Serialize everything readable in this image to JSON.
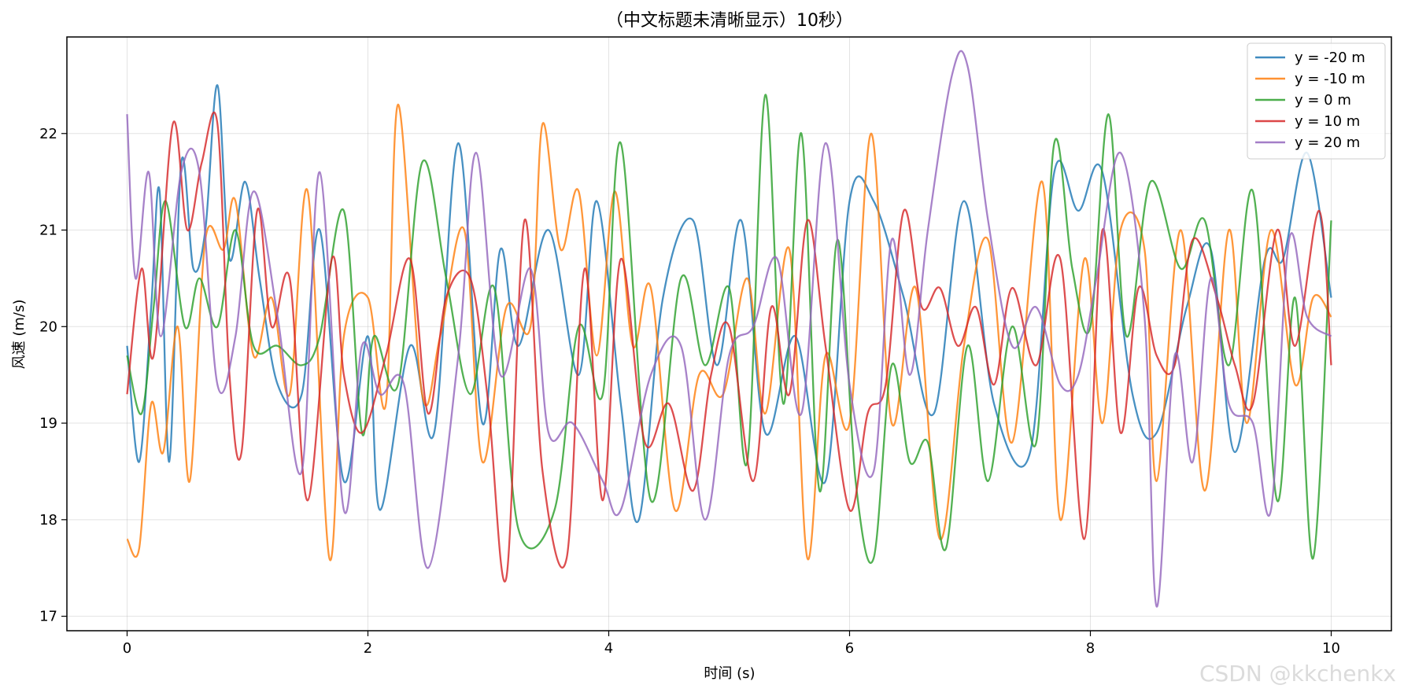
{
  "chart_data": {
    "type": "line",
    "title": "（中文标题未清晰显示）10秒）",
    "xlabel": "时间 (s)",
    "ylabel": "风速 (m/s)",
    "xlim": [
      -0.5,
      10.5
    ],
    "ylim": [
      16.85,
      23.0
    ],
    "xticks": [
      0,
      2,
      4,
      6,
      8,
      10
    ],
    "yticks": [
      17,
      18,
      19,
      20,
      21,
      22
    ],
    "grid": true,
    "legend_position": "top-right",
    "series": [
      {
        "name": "y = -20 m",
        "color": "#1f77b4",
        "x": [
          0,
          0.1,
          0.2,
          0.27,
          0.35,
          0.45,
          0.55,
          0.65,
          0.75,
          0.85,
          0.98,
          1.1,
          1.25,
          1.45,
          1.6,
          1.8,
          2.0,
          2.1,
          2.35,
          2.55,
          2.75,
          2.95,
          3.1,
          3.25,
          3.5,
          3.75,
          3.9,
          4.1,
          4.25,
          4.45,
          4.7,
          4.9,
          5.1,
          5.3,
          5.55,
          5.8,
          6.0,
          6.2,
          6.45,
          6.7,
          6.95,
          7.2,
          7.5,
          7.7,
          7.9,
          8.1,
          8.35,
          8.55,
          8.8,
          9.0,
          9.2,
          9.45,
          9.6,
          9.8,
          10.0
        ],
        "y": [
          19.8,
          18.6,
          20.2,
          21.4,
          18.6,
          21.7,
          20.6,
          21.0,
          22.5,
          20.7,
          21.5,
          20.5,
          19.4,
          19.3,
          21.0,
          18.4,
          19.9,
          18.1,
          19.8,
          18.9,
          21.9,
          19.0,
          20.8,
          19.8,
          21.0,
          19.5,
          21.3,
          19.2,
          18.0,
          20.3,
          21.1,
          19.6,
          21.1,
          18.9,
          19.9,
          18.4,
          21.3,
          21.3,
          20.3,
          19.1,
          21.3,
          19.2,
          18.7,
          21.6,
          21.2,
          21.6,
          19.3,
          18.9,
          20.2,
          20.8,
          18.7,
          20.7,
          20.7,
          21.8,
          20.3
        ]
      },
      {
        "name": "y = -10 m",
        "color": "#ff7f0e",
        "x": [
          0,
          0.1,
          0.2,
          0.3,
          0.42,
          0.52,
          0.65,
          0.8,
          0.9,
          1.05,
          1.2,
          1.35,
          1.5,
          1.68,
          1.8,
          2.0,
          2.15,
          2.25,
          2.45,
          2.6,
          2.8,
          2.95,
          3.15,
          3.35,
          3.45,
          3.6,
          3.75,
          3.9,
          4.05,
          4.2,
          4.35,
          4.55,
          4.75,
          4.95,
          5.15,
          5.3,
          5.5,
          5.65,
          5.8,
          6.0,
          6.18,
          6.35,
          6.55,
          6.75,
          6.95,
          7.15,
          7.35,
          7.6,
          7.75,
          7.95,
          8.1,
          8.25,
          8.45,
          8.55,
          8.75,
          8.95,
          9.15,
          9.3,
          9.5,
          9.7,
          9.85,
          10.0
        ],
        "y": [
          17.8,
          17.7,
          19.2,
          18.7,
          20.0,
          18.4,
          20.9,
          20.8,
          21.3,
          19.7,
          20.3,
          19.3,
          21.4,
          17.6,
          19.9,
          20.3,
          19.2,
          22.3,
          19.3,
          19.9,
          21.0,
          18.6,
          20.2,
          20.0,
          22.1,
          20.8,
          21.4,
          19.7,
          21.4,
          19.8,
          20.4,
          18.1,
          19.5,
          19.3,
          20.5,
          19.1,
          20.8,
          17.6,
          19.7,
          19.0,
          22.0,
          19.0,
          20.4,
          17.8,
          19.8,
          20.9,
          18.8,
          21.5,
          18.0,
          20.7,
          19.0,
          21.0,
          20.8,
          18.4,
          21.0,
          18.3,
          21.0,
          19.0,
          21.0,
          19.4,
          20.3,
          20.1
        ]
      },
      {
        "name": "y = 0 m",
        "color": "#2ca02c",
        "x": [
          0,
          0.12,
          0.22,
          0.32,
          0.48,
          0.6,
          0.75,
          0.9,
          1.05,
          1.25,
          1.45,
          1.6,
          1.8,
          1.95,
          2.05,
          2.25,
          2.45,
          2.65,
          2.85,
          3.05,
          3.25,
          3.55,
          3.75,
          3.95,
          4.1,
          4.35,
          4.6,
          4.8,
          5.0,
          5.15,
          5.3,
          5.45,
          5.6,
          5.75,
          5.9,
          6.05,
          6.2,
          6.35,
          6.5,
          6.65,
          6.8,
          6.98,
          7.15,
          7.35,
          7.55,
          7.7,
          7.85,
          8.0,
          8.15,
          8.3,
          8.5,
          8.75,
          8.95,
          9.15,
          9.35,
          9.55,
          9.7,
          9.85,
          10.0
        ],
        "y": [
          19.7,
          19.1,
          20.2,
          21.3,
          20.0,
          20.5,
          20.0,
          21.0,
          19.8,
          19.8,
          19.6,
          19.9,
          21.2,
          18.9,
          19.9,
          19.4,
          21.7,
          20.5,
          19.3,
          20.4,
          17.9,
          18.1,
          20.0,
          19.3,
          21.9,
          18.2,
          20.5,
          19.6,
          20.4,
          18.6,
          22.4,
          19.2,
          22.0,
          18.3,
          20.9,
          18.4,
          17.6,
          19.6,
          18.6,
          18.8,
          17.7,
          19.8,
          18.4,
          20.0,
          18.8,
          21.9,
          20.6,
          20.0,
          22.2,
          19.9,
          21.5,
          20.6,
          21.1,
          19.6,
          21.4,
          18.2,
          20.3,
          17.6,
          21.1
        ]
      },
      {
        "name": "y = 10 m",
        "color": "#d62728",
        "x": [
          0,
          0.12,
          0.22,
          0.38,
          0.5,
          0.62,
          0.75,
          0.85,
          0.95,
          1.08,
          1.2,
          1.35,
          1.5,
          1.7,
          1.8,
          1.95,
          2.15,
          2.35,
          2.5,
          2.65,
          2.85,
          3.0,
          3.15,
          3.3,
          3.45,
          3.65,
          3.8,
          3.95,
          4.1,
          4.3,
          4.5,
          4.7,
          4.85,
          5.0,
          5.2,
          5.35,
          5.5,
          5.65,
          5.8,
          6.0,
          6.15,
          6.3,
          6.45,
          6.6,
          6.75,
          6.9,
          7.05,
          7.2,
          7.35,
          7.55,
          7.75,
          7.95,
          8.1,
          8.25,
          8.4,
          8.55,
          8.7,
          8.85,
          9.05,
          9.2,
          9.35,
          9.55,
          9.7,
          9.9,
          10.0
        ],
        "y": [
          19.3,
          20.6,
          19.7,
          22.1,
          21.0,
          21.7,
          22.1,
          19.5,
          18.7,
          21.2,
          20.0,
          20.5,
          18.2,
          20.7,
          19.5,
          18.9,
          19.7,
          20.7,
          19.1,
          20.3,
          20.5,
          19.2,
          17.4,
          21.1,
          18.5,
          17.6,
          20.6,
          18.2,
          20.7,
          18.8,
          19.2,
          18.3,
          19.5,
          20.0,
          18.4,
          20.2,
          19.3,
          21.1,
          19.8,
          18.1,
          19.1,
          19.4,
          21.2,
          20.2,
          20.4,
          19.8,
          20.2,
          19.4,
          20.4,
          19.6,
          20.7,
          17.8,
          21.0,
          18.9,
          20.4,
          19.7,
          19.6,
          20.9,
          20.3,
          19.6,
          19.2,
          21.0,
          19.8,
          21.2,
          19.6
        ]
      },
      {
        "name": "y = 20 m",
        "color": "#9467bd",
        "x": [
          0,
          0.07,
          0.18,
          0.28,
          0.45,
          0.6,
          0.75,
          0.9,
          1.05,
          1.25,
          1.45,
          1.6,
          1.8,
          1.95,
          2.1,
          2.3,
          2.5,
          2.75,
          2.9,
          3.1,
          3.35,
          3.5,
          3.7,
          3.95,
          4.1,
          4.35,
          4.6,
          4.8,
          5.0,
          5.2,
          5.4,
          5.6,
          5.8,
          6.0,
          6.2,
          6.35,
          6.5,
          6.65,
          6.85,
          6.98,
          7.15,
          7.35,
          7.55,
          7.75,
          7.9,
          8.05,
          8.25,
          8.45,
          8.55,
          8.7,
          8.85,
          9.0,
          9.15,
          9.35,
          9.5,
          9.65,
          9.8,
          10.0
        ],
        "y": [
          22.2,
          20.5,
          21.6,
          19.9,
          21.6,
          21.6,
          19.4,
          19.9,
          21.4,
          20.1,
          18.5,
          21.6,
          18.1,
          19.8,
          19.3,
          19.4,
          17.5,
          19.7,
          21.8,
          19.5,
          20.6,
          18.9,
          19.0,
          18.4,
          18.1,
          19.5,
          19.8,
          18.0,
          19.7,
          20.0,
          20.7,
          19.1,
          21.9,
          19.4,
          18.5,
          20.9,
          19.5,
          21.0,
          22.6,
          22.7,
          21.1,
          19.8,
          20.2,
          19.4,
          19.5,
          20.5,
          21.8,
          20.1,
          17.1,
          19.7,
          18.6,
          20.5,
          19.2,
          19.0,
          18.1,
          20.9,
          20.1,
          19.9
        ]
      }
    ]
  },
  "watermark": "CSDN @kkchenkx"
}
